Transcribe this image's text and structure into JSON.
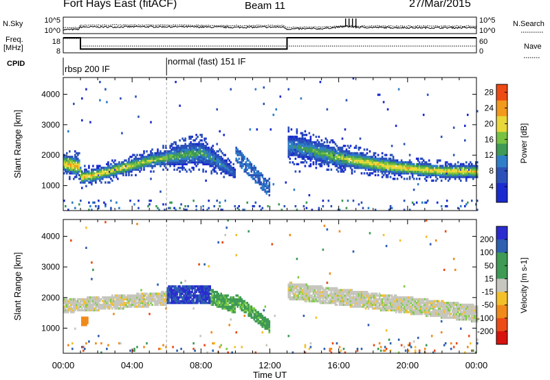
{
  "header": {
    "station": "Fort Hays East (fitACF)",
    "beam": "Beam 11",
    "date": "27/Mar/2015"
  },
  "side_labels": {
    "nsky": "N.Sky",
    "freq": "Freq.",
    "freq_unit": "[MHz]",
    "cpid": "CPID",
    "nsearch": "N.Search",
    "nave": "Nave"
  },
  "cpid_modes": [
    "rbsp 200 IF",
    "normal (fast) 151 IF"
  ],
  "chart_data": [
    {
      "type": "line",
      "name": "noise",
      "y_left_ticks": [
        "10^5",
        "10^0"
      ],
      "y_right_ticks": [
        "10^5",
        "10^0"
      ],
      "x": [
        0,
        0.9,
        1.0,
        6,
        8,
        10,
        12.8,
        13.0,
        15,
        16.5,
        17,
        20,
        24
      ],
      "nsky": [
        1.2,
        1.3,
        2.0,
        2.1,
        2.0,
        1.9,
        2.0,
        1.4,
        1.5,
        2.2,
        1.9,
        1.8,
        1.8
      ],
      "nsearch": [
        1.8,
        1.8,
        2.6,
        2.6,
        2.5,
        2.4,
        2.5,
        1.9,
        2.0,
        2.4,
        2.3,
        2.3,
        2.3
      ]
    },
    {
      "type": "line",
      "name": "frequency",
      "y_left_ticks": [
        "18",
        "8"
      ],
      "y_right_ticks": [
        "60",
        "0"
      ],
      "freq_x": [
        0,
        1.0,
        1.0,
        13.0,
        13.0,
        24
      ],
      "freq_y": [
        18,
        18,
        10.5,
        10.5,
        18,
        18
      ],
      "nave_x": [
        0,
        1.0,
        1.0,
        24
      ],
      "nave_y": [
        57,
        57,
        27,
        27
      ]
    },
    {
      "type": "heatmap",
      "name": "power",
      "ylabel": "Slant Range [km]",
      "yticks": [
        1000,
        2000,
        3000,
        4000
      ],
      "ylim": [
        180,
        4550
      ],
      "xlim": [
        0,
        24
      ],
      "colorbar": {
        "label": "Power [dB]",
        "ticks": [
          "4",
          "8",
          "12",
          "16",
          "20",
          "24",
          "28"
        ],
        "range": [
          0,
          30
        ]
      },
      "bands": [
        {
          "t": [
            0,
            0.5,
            0.9,
            1.0,
            2,
            3,
            4,
            5,
            6,
            7,
            8,
            9,
            10
          ],
          "center": [
            1700,
            1650,
            1600,
            1250,
            1350,
            1500,
            1650,
            1800,
            1900,
            2000,
            2050,
            1750,
            1350
          ],
          "width": [
            500,
            550,
            500,
            400,
            380,
            380,
            400,
            420,
            450,
            650,
            700,
            500,
            300
          ],
          "peak": [
            22,
            24,
            24,
            22,
            22,
            22,
            20,
            18,
            17,
            15,
            14,
            12,
            10
          ]
        },
        {
          "t": [
            13,
            14,
            15,
            16,
            17,
            18,
            19,
            20,
            21,
            22,
            23,
            24
          ],
          "center": [
            2300,
            2200,
            2050,
            1900,
            1800,
            1700,
            1600,
            1550,
            1500,
            1450,
            1450,
            1450
          ],
          "width": [
            650,
            650,
            600,
            550,
            500,
            450,
            450,
            400,
            400,
            380,
            380,
            380
          ],
          "peak": [
            12,
            14,
            16,
            18,
            20,
            22,
            22,
            22,
            22,
            22,
            22,
            22
          ]
        }
      ],
      "streak": {
        "t": [
          10,
          11,
          12
        ],
        "range": [
          2000,
          1400,
          800
        ]
      }
    },
    {
      "type": "heatmap",
      "name": "velocity",
      "ylabel": "Slant Range [km]",
      "xlabel": "Time UT",
      "xticks": [
        "00:00",
        "04:00",
        "08:00",
        "12:00",
        "16:00",
        "20:00",
        "00:00"
      ],
      "yticks": [
        1000,
        2000,
        3000,
        4000
      ],
      "ylim": [
        180,
        4550
      ],
      "xlim": [
        0,
        24
      ],
      "colorbar": {
        "label": "Velocity [m s-1]",
        "ticks": [
          "200",
          "100",
          "50",
          "15",
          "-15",
          "-50",
          "-100",
          "-200"
        ],
        "range": [
          -250,
          250
        ]
      },
      "regions": [
        {
          "t0": 0,
          "t1": 6,
          "center_from": 1700,
          "center_to": 1950,
          "width": 450,
          "velocity": 0
        },
        {
          "t0": 1.0,
          "t1": 1.4,
          "center_from": 1200,
          "center_to": 1200,
          "width": 300,
          "velocity": -70
        },
        {
          "t0": 6,
          "t1": 8.5,
          "center_from": 2050,
          "center_to": 2050,
          "width": 600,
          "velocity": 150
        },
        {
          "t0": 8.5,
          "t1": 10,
          "center_from": 2000,
          "center_to": 1700,
          "width": 500,
          "velocity": 40
        },
        {
          "t0": 10,
          "t1": 12,
          "center_from": 1900,
          "center_to": 1000,
          "width": 400,
          "velocity": 40
        },
        {
          "t0": 13,
          "t1": 24,
          "center_from": 2200,
          "center_to": 1450,
          "width": 550,
          "velocity": 0
        }
      ]
    }
  ]
}
